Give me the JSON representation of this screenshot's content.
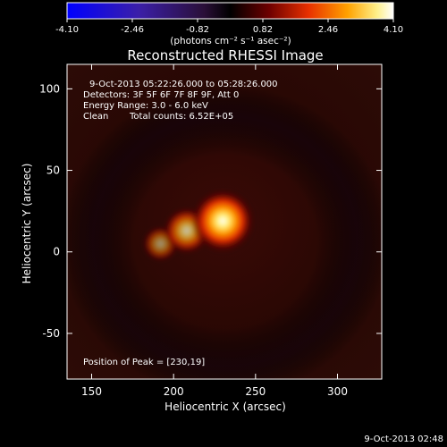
{
  "chart_data": {
    "type": "heatmap",
    "title": "Reconstructed RHESSI Image",
    "xlabel": "Heliocentric X (arcsec)",
    "ylabel": "Heliocentric Y (arcsec)",
    "x_ticks": [
      150,
      200,
      250,
      300
    ],
    "y_ticks": [
      100,
      50,
      0,
      -50
    ],
    "x_range": [
      135,
      327
    ],
    "y_range": [
      -78,
      115
    ],
    "colorbar": {
      "ticks": [
        "-4.10",
        "-2.46",
        "-0.82",
        "0.82",
        "2.46",
        "4.10"
      ],
      "units": "(photons cm⁻² s⁻¹ asec⁻²)",
      "range": [
        -4.1,
        4.1
      ]
    },
    "annotations": [
      "9-Oct-2013 05:22:26.000 to 05:28:26.000",
      "Detectors: 3F 5F 6F 7F 8F 9F, Att 0",
      "Energy Range: 3.0 - 6.0 keV",
      "Clean",
      "Total counts: 6.52E+05"
    ],
    "peak_label": "Position of Peak = [230,19]",
    "peak": [
      230,
      19
    ],
    "sources": [
      {
        "x": 230,
        "y": 19,
        "intensity": 4.1
      },
      {
        "x": 208,
        "y": 13,
        "intensity": 2.4
      },
      {
        "x": 192,
        "y": 5,
        "intensity": 1.2
      }
    ],
    "grid": false
  },
  "footer_timestamp": "9-Oct-2013 02:48"
}
